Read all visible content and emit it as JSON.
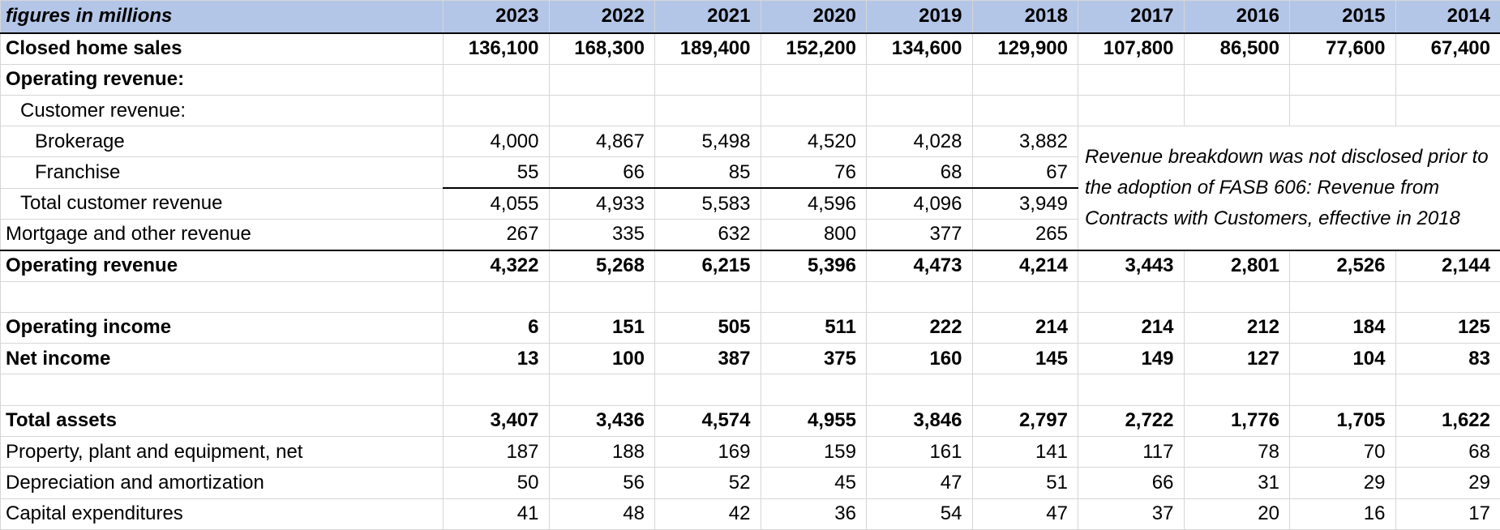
{
  "header": {
    "label": "figures in millions",
    "years": [
      "2023",
      "2022",
      "2021",
      "2020",
      "2019",
      "2018",
      "2017",
      "2016",
      "2015",
      "2014"
    ]
  },
  "rows": {
    "closed_home_sales": {
      "label": "Closed home sales",
      "values": [
        "136,100",
        "168,300",
        "189,400",
        "152,200",
        "134,600",
        "129,900",
        "107,800",
        "86,500",
        "77,600",
        "67,400"
      ]
    },
    "operating_revenue_heading": {
      "label": "Operating revenue:"
    },
    "customer_revenue_heading": {
      "label": "Customer revenue:"
    },
    "brokerage": {
      "label": "Brokerage",
      "values": [
        "4,000",
        "4,867",
        "5,498",
        "4,520",
        "4,028",
        "3,882"
      ]
    },
    "franchise": {
      "label": "Franchise",
      "values": [
        "55",
        "66",
        "85",
        "76",
        "68",
        "67"
      ]
    },
    "total_customer_revenue": {
      "label": "Total customer revenue",
      "values": [
        "4,055",
        "4,933",
        "5,583",
        "4,596",
        "4,096",
        "3,949"
      ]
    },
    "mortgage_other_revenue": {
      "label": "Mortgage and other revenue",
      "values": [
        "267",
        "335",
        "632",
        "800",
        "377",
        "265"
      ]
    },
    "operating_revenue": {
      "label": "Operating revenue",
      "values": [
        "4,322",
        "5,268",
        "6,215",
        "5,396",
        "4,473",
        "4,214",
        "3,443",
        "2,801",
        "2,526",
        "2,144"
      ]
    },
    "operating_income": {
      "label": "Operating income",
      "values": [
        "6",
        "151",
        "505",
        "511",
        "222",
        "214",
        "214",
        "212",
        "184",
        "125"
      ]
    },
    "net_income": {
      "label": "Net income",
      "values": [
        "13",
        "100",
        "387",
        "375",
        "160",
        "145",
        "149",
        "127",
        "104",
        "83"
      ]
    },
    "total_assets": {
      "label": "Total assets",
      "values": [
        "3,407",
        "3,436",
        "4,574",
        "4,955",
        "3,846",
        "2,797",
        "2,722",
        "1,776",
        "1,705",
        "1,622"
      ]
    },
    "ppe_net": {
      "label": "Property, plant and equipment, net",
      "values": [
        "187",
        "188",
        "169",
        "159",
        "161",
        "141",
        "117",
        "78",
        "70",
        "68"
      ]
    },
    "depreciation_amortization": {
      "label": "Depreciation and amortization",
      "values": [
        "50",
        "56",
        "52",
        "45",
        "47",
        "51",
        "66",
        "31",
        "29",
        "29"
      ]
    },
    "capital_expenditures": {
      "label": "Capital expenditures",
      "values": [
        "41",
        "48",
        "42",
        "36",
        "54",
        "47",
        "37",
        "20",
        "16",
        "17"
      ]
    }
  },
  "note": "Revenue breakdown was not disclosed prior to the adoption of FASB 606: Revenue from Contracts with Customers, effective in 2018",
  "colors": {
    "header_fill": "#b4c6e7",
    "grid": "#d6d6d6",
    "rule": "#000000"
  }
}
